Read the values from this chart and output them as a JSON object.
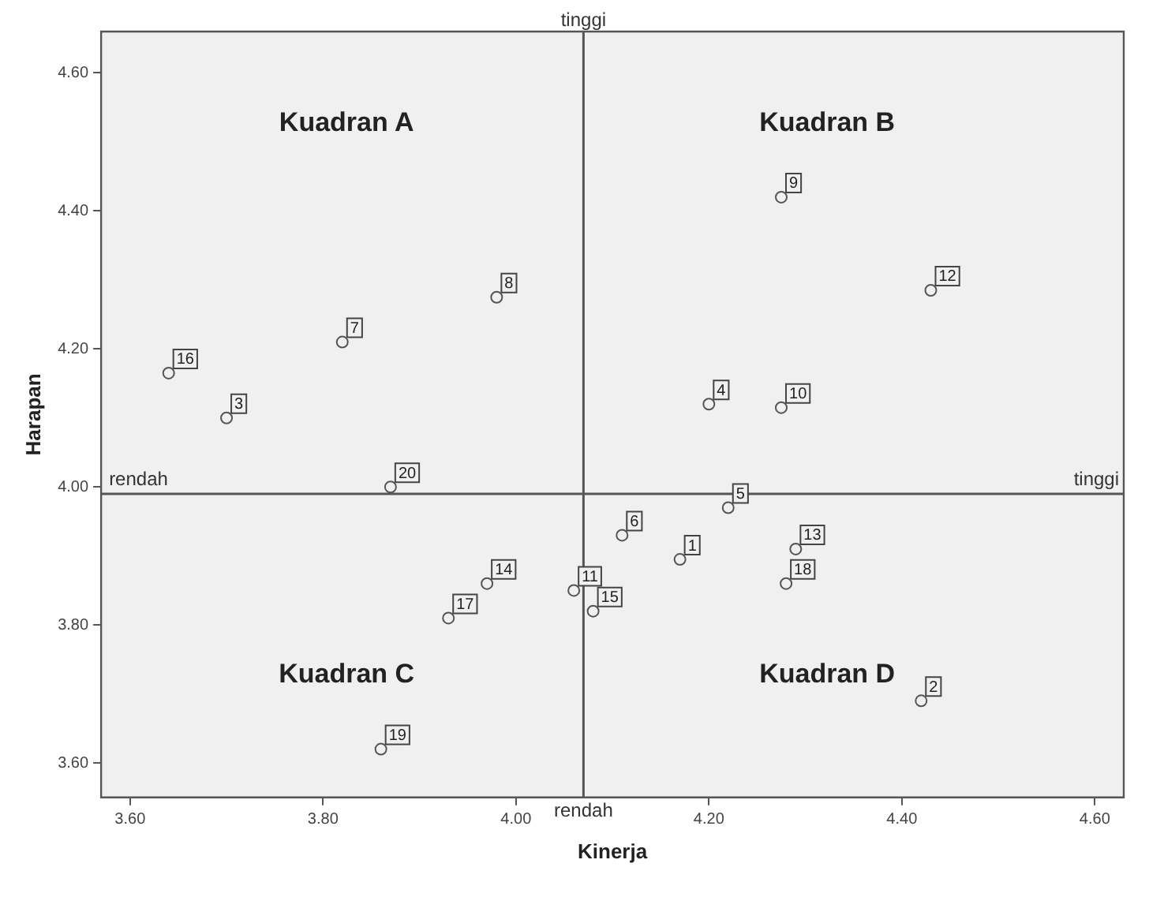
{
  "chart_data": {
    "type": "scatter",
    "xlabel": "Kinerja",
    "ylabel": "Harapan",
    "x": [
      4.17,
      4.42,
      3.7,
      4.2,
      4.22,
      4.11,
      3.82,
      3.98,
      4.275,
      4.275,
      4.06,
      4.43,
      4.29,
      3.97,
      4.08,
      3.64,
      3.93,
      4.28,
      3.86,
      3.87
    ],
    "series": [
      {
        "color": "#555555",
        "values": [
          3.895,
          3.69,
          4.1,
          4.12,
          3.97,
          3.93,
          4.21,
          4.275,
          4.42,
          4.115,
          3.85,
          4.285,
          3.91,
          3.86,
          3.82,
          4.165,
          3.81,
          3.86,
          3.62,
          4.0
        ]
      }
    ],
    "marker": "circle",
    "grid": false,
    "legend": false,
    "xlim": [
      3.57,
      4.63
    ],
    "xticks": [
      {
        "value": 3.6,
        "label": "3.60"
      },
      {
        "value": 3.8,
        "label": "3.80"
      },
      {
        "value": 4.0,
        "label": "4.00"
      },
      {
        "value": 4.2,
        "label": "4.20"
      },
      {
        "value": 4.4,
        "label": "4.40"
      },
      {
        "value": 4.6,
        "label": "4.60"
      }
    ],
    "ylim": [
      3.55,
      4.66
    ],
    "yticks": [
      {
        "value": 3.6,
        "label": "3.60"
      },
      {
        "value": 3.8,
        "label": "3.80"
      },
      {
        "value": 4.0,
        "label": "4.00"
      },
      {
        "value": 4.2,
        "label": "4.20"
      },
      {
        "value": 4.4,
        "label": "4.40"
      },
      {
        "value": 4.6,
        "label": "4.60"
      }
    ],
    "ref_lines": [
      {
        "axis": "x",
        "value": 4.07,
        "color": "#555555"
      },
      {
        "axis": "y",
        "value": 3.99,
        "color": "#555555"
      }
    ],
    "annotations": [
      {
        "text": "tinggi",
        "x": 4.07,
        "y": 4.66
      },
      {
        "text": "rendah",
        "x": 4.07,
        "y": 3.55
      },
      {
        "text": "rendah",
        "x": 3.57,
        "y": 3.99
      },
      {
        "text": "tinggi",
        "x": 4.63,
        "y": 3.99
      },
      "Kuadran A",
      "Kuadran B",
      "Kuadran C",
      "Kuadran D",
      {
        "text": "1",
        "x": 4.17,
        "y": 3.895
      },
      {
        "text": "2",
        "x": 4.42,
        "y": 3.69
      },
      {
        "text": "3",
        "x": 3.7,
        "y": 4.1
      },
      {
        "text": "4",
        "x": 4.2,
        "y": 4.12
      },
      {
        "text": "5",
        "x": 4.22,
        "y": 3.97
      },
      {
        "text": "6",
        "x": 4.11,
        "y": 3.93
      },
      {
        "text": "7",
        "x": 3.82,
        "y": 4.21
      },
      {
        "text": "8",
        "x": 3.98,
        "y": 4.275
      },
      {
        "text": "9",
        "x": 4.275,
        "y": 4.42
      },
      {
        "text": "10",
        "x": 4.275,
        "y": 4.115
      },
      {
        "text": "11",
        "x": 4.06,
        "y": 3.85
      },
      {
        "text": "12",
        "x": 4.43,
        "y": 4.285
      },
      {
        "text": "13",
        "x": 4.29,
        "y": 3.91
      },
      {
        "text": "14",
        "x": 3.97,
        "y": 3.86
      },
      {
        "text": "15",
        "x": 4.08,
        "y": 3.82
      },
      {
        "text": "16",
        "x": 3.64,
        "y": 4.165
      },
      {
        "text": "17",
        "x": 3.93,
        "y": 3.81
      },
      {
        "text": "18",
        "x": 4.28,
        "y": 3.86
      },
      {
        "text": "19",
        "x": 3.86,
        "y": 3.62
      },
      {
        "text": "20",
        "x": 3.87,
        "y": 4.0
      }
    ]
  }
}
